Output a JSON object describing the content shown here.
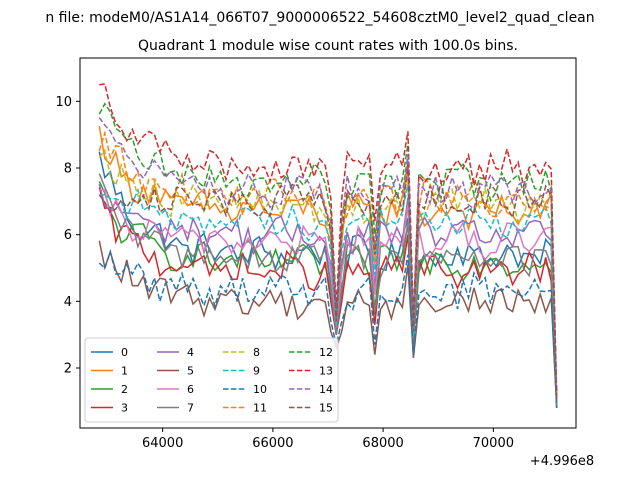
{
  "suptitle": "n file: modeM0/AS1A14_066T07_9000006522_54608cztM0_level2_quad_clean",
  "chart_data": {
    "type": "line",
    "title": "Quadrant 1 module wise count rates with 100.0s bins.",
    "xlabel": "",
    "ylabel": "",
    "x_offset_label": "+4.996e8",
    "xlim": [
      62500,
      71500
    ],
    "ylim": [
      0.2,
      11.3
    ],
    "xticks": [
      64000,
      66000,
      68000,
      70000
    ],
    "xtick_labels": [
      "64000",
      "66000",
      "68000",
      "70000"
    ],
    "yticks": [
      2,
      4,
      6,
      8,
      10
    ],
    "ytick_labels": [
      "2",
      "4",
      "6",
      "8",
      "10"
    ],
    "grid": false,
    "legend_position": "lower-left",
    "legend_columns": 4,
    "x_start": 62850,
    "x_step": 100,
    "dip_points": [
      63050,
      67150,
      67850,
      68550,
      71150
    ],
    "series": [
      {
        "name": "0",
        "color": "#1f77b4",
        "dash": "solid",
        "base": 5.4,
        "start": 8.3,
        "dip": 3.0,
        "end": 0.8
      },
      {
        "name": "1",
        "color": "#ff7f0e",
        "dash": "solid",
        "base": 6.7,
        "start": 8.9,
        "dip": 3.4,
        "end": 1.0
      },
      {
        "name": "2",
        "color": "#2ca02c",
        "dash": "solid",
        "base": 5.2,
        "start": 7.2,
        "dip": 3.1,
        "end": 0.9
      },
      {
        "name": "3",
        "color": "#d62728",
        "dash": "solid",
        "base": 4.9,
        "start": 7.1,
        "dip": 3.0,
        "end": 0.9
      },
      {
        "name": "4",
        "color": "#9467bd",
        "dash": "solid",
        "base": 6.0,
        "start": 7.3,
        "dip": 3.2,
        "end": 1.0
      },
      {
        "name": "5",
        "color": "#8c564b",
        "dash": "solid",
        "base": 4.0,
        "start": 5.6,
        "dip": 2.6,
        "end": 0.8
      },
      {
        "name": "6",
        "color": "#e377c2",
        "dash": "solid",
        "base": 5.8,
        "start": 7.0,
        "dip": 3.2,
        "end": 1.0
      },
      {
        "name": "7",
        "color": "#7f7f7f",
        "dash": "solid",
        "base": 5.3,
        "start": 7.3,
        "dip": 3.0,
        "end": 0.9
      },
      {
        "name": "8",
        "color": "#bcbd22",
        "dash": "dashed",
        "base": 6.9,
        "start": 8.6,
        "dip": 3.4,
        "end": 1.0
      },
      {
        "name": "9",
        "color": "#17becf",
        "dash": "dashed",
        "base": 6.4,
        "start": 7.5,
        "dip": 3.3,
        "end": 1.0
      },
      {
        "name": "10",
        "color": "#1f77b4",
        "dash": "dashed",
        "base": 4.3,
        "start": 5.6,
        "dip": 2.7,
        "end": 0.8
      },
      {
        "name": "11",
        "color": "#ff7f0e",
        "dash": "dashed",
        "base": 7.1,
        "start": 9.0,
        "dip": 3.5,
        "end": 1.1
      },
      {
        "name": "12",
        "color": "#2ca02c",
        "dash": "dashed",
        "base": 7.6,
        "start": 10.0,
        "dip": 3.6,
        "end": 1.1
      },
      {
        "name": "13",
        "color": "#d62728",
        "dash": "dashed",
        "base": 8.0,
        "start": 10.7,
        "dip": 3.8,
        "end": 1.2
      },
      {
        "name": "14",
        "color": "#9467bd",
        "dash": "dashed",
        "base": 7.3,
        "start": 9.6,
        "dip": 3.5,
        "end": 1.1
      },
      {
        "name": "15",
        "color": "#8c564b",
        "dash": "dashed",
        "base": 7.0,
        "start": 7.3,
        "dip": 3.4,
        "end": 1.0
      }
    ]
  }
}
